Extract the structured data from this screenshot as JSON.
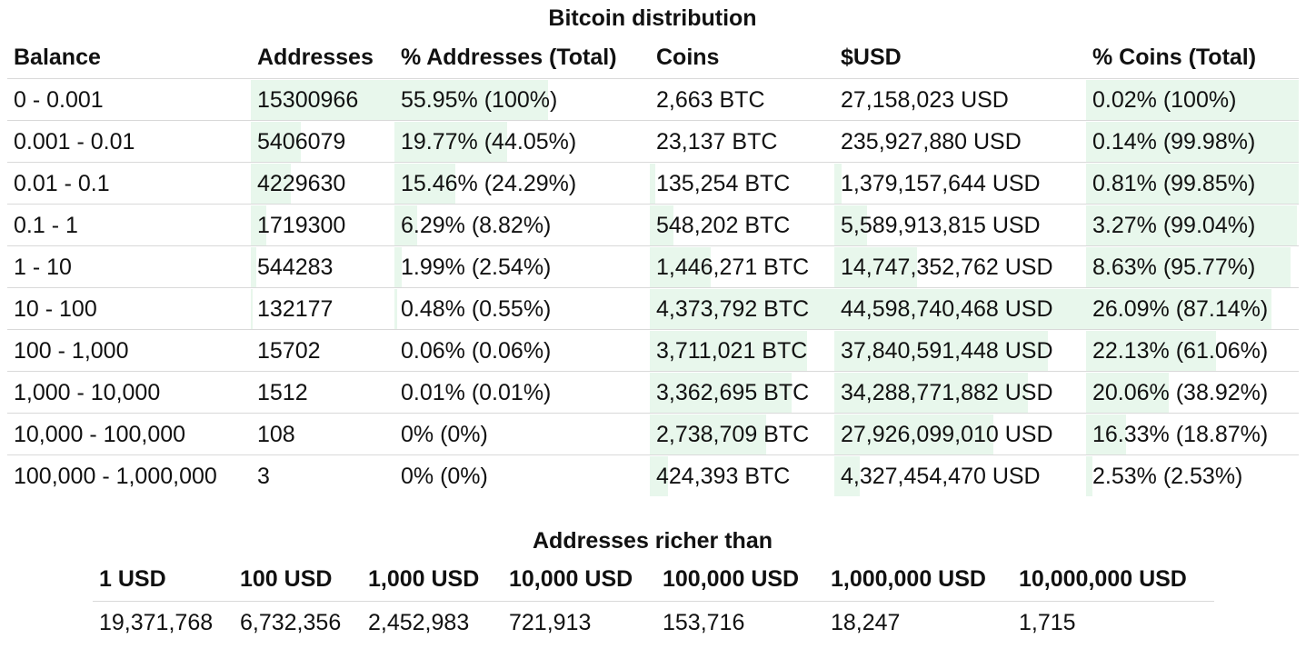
{
  "distribution": {
    "title": "Bitcoin distribution",
    "headers": [
      "Balance",
      "Addresses",
      "% Addresses (Total)",
      "Coins",
      "$USD",
      "% Coins (Total)"
    ],
    "rows": [
      {
        "balance": "0 - 0.001",
        "addresses": "15300966",
        "pct_addresses": "55.95% (100%)",
        "coins": "2,663 BTC",
        "usd": "27,158,023 USD",
        "pct_coins": "0.02% (100%)",
        "addr_fill": 1.0,
        "pct_addr_fill": 0.6,
        "coins_fill": 0.0,
        "usd_fill": 0.0,
        "pct_coins_fill": 1.0
      },
      {
        "balance": "0.001 - 0.01",
        "addresses": "5406079",
        "pct_addresses": "19.77% (44.05%)",
        "coins": "23,137 BTC",
        "usd": "235,927,880 USD",
        "pct_coins": "0.14% (99.98%)",
        "addr_fill": 0.35,
        "pct_addr_fill": 0.44,
        "coins_fill": 0.0,
        "usd_fill": 0.0,
        "pct_coins_fill": 1.0
      },
      {
        "balance": "0.01 - 0.1",
        "addresses": "4229630",
        "pct_addresses": "15.46% (24.29%)",
        "coins": "135,254 BTC",
        "usd": "1,379,157,644 USD",
        "pct_coins": "0.81% (99.85%)",
        "addr_fill": 0.28,
        "pct_addr_fill": 0.24,
        "coins_fill": 0.03,
        "usd_fill": 0.03,
        "pct_coins_fill": 1.0
      },
      {
        "balance": "0.1 - 1",
        "addresses": "1719300",
        "pct_addresses": "6.29% (8.82%)",
        "coins": "548,202 BTC",
        "usd": "5,589,913,815 USD",
        "pct_coins": "3.27% (99.04%)",
        "addr_fill": 0.11,
        "pct_addr_fill": 0.09,
        "coins_fill": 0.13,
        "usd_fill": 0.13,
        "pct_coins_fill": 0.99
      },
      {
        "balance": "1 - 10",
        "addresses": "544283",
        "pct_addresses": "1.99% (2.54%)",
        "coins": "1,446,271 BTC",
        "usd": "14,747,352,762 USD",
        "pct_coins": "8.63% (95.77%)",
        "addr_fill": 0.04,
        "pct_addr_fill": 0.03,
        "coins_fill": 0.33,
        "usd_fill": 0.33,
        "pct_coins_fill": 0.96
      },
      {
        "balance": "10 - 100",
        "addresses": "132177",
        "pct_addresses": "0.48% (0.55%)",
        "coins": "4,373,792 BTC",
        "usd": "44,598,740,468 USD",
        "pct_coins": "26.09% (87.14%)",
        "addr_fill": 0.01,
        "pct_addr_fill": 0.01,
        "coins_fill": 1.0,
        "usd_fill": 1.0,
        "pct_coins_fill": 0.87
      },
      {
        "balance": "100 - 1,000",
        "addresses": "15702",
        "pct_addresses": "0.06% (0.06%)",
        "coins": "3,711,021 BTC",
        "usd": "37,840,591,448 USD",
        "pct_coins": "22.13% (61.06%)",
        "addr_fill": 0.0,
        "pct_addr_fill": 0.0,
        "coins_fill": 0.85,
        "usd_fill": 0.85,
        "pct_coins_fill": 0.61
      },
      {
        "balance": "1,000 - 10,000",
        "addresses": "1512",
        "pct_addresses": "0.01% (0.01%)",
        "coins": "3,362,695 BTC",
        "usd": "34,288,771,882 USD",
        "pct_coins": "20.06% (38.92%)",
        "addr_fill": 0.0,
        "pct_addr_fill": 0.0,
        "coins_fill": 0.77,
        "usd_fill": 0.77,
        "pct_coins_fill": 0.39
      },
      {
        "balance": "10,000 - 100,000",
        "addresses": "108",
        "pct_addresses": "0% (0%)",
        "coins": "2,738,709 BTC",
        "usd": "27,926,099,010 USD",
        "pct_coins": "16.33% (18.87%)",
        "addr_fill": 0.0,
        "pct_addr_fill": 0.0,
        "coins_fill": 0.63,
        "usd_fill": 0.63,
        "pct_coins_fill": 0.19
      },
      {
        "balance": "100,000 - 1,000,000",
        "addresses": "3",
        "pct_addresses": "0% (0%)",
        "coins": "424,393 BTC",
        "usd": "4,327,454,470 USD",
        "pct_coins": "2.53% (2.53%)",
        "addr_fill": 0.0,
        "pct_addr_fill": 0.0,
        "coins_fill": 0.1,
        "usd_fill": 0.1,
        "pct_coins_fill": 0.03
      }
    ],
    "bar_color": "#e8f7ec"
  },
  "richer": {
    "title": "Addresses richer than",
    "headers": [
      "1 USD",
      "100 USD",
      "1,000 USD",
      "10,000 USD",
      "100,000 USD",
      "1,000,000 USD",
      "10,000,000 USD"
    ],
    "values": [
      "19,371,768",
      "6,732,356",
      "2,452,983",
      "721,913",
      "153,716",
      "18,247",
      "1,715"
    ]
  }
}
